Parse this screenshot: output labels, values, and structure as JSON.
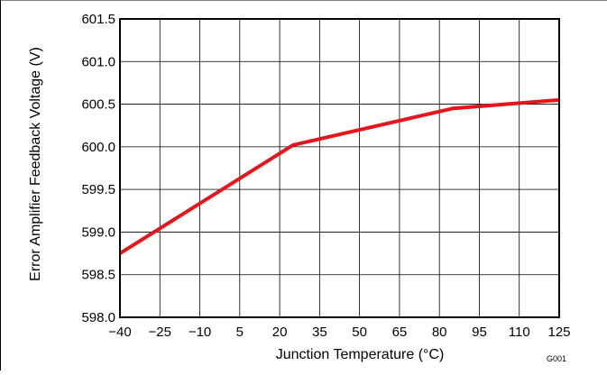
{
  "chart_data": {
    "type": "line",
    "title": "",
    "xlabel": "Junction Temperature (°C)",
    "ylabel": "Error Amplifier Feedback Voltage (V)",
    "xlim": [
      -40,
      125
    ],
    "ylim": [
      598.0,
      601.5
    ],
    "grid": true,
    "legend": "none",
    "x_ticks": [
      -40,
      -25,
      -10,
      5,
      20,
      35,
      50,
      65,
      80,
      95,
      110,
      125
    ],
    "x_tick_labels": [
      "−40",
      "−25",
      "−10",
      "5",
      "20",
      "35",
      "50",
      "65",
      "80",
      "95",
      "110",
      "125"
    ],
    "y_ticks": [
      598.0,
      598.5,
      599.0,
      599.5,
      600.0,
      600.5,
      601.0,
      601.5
    ],
    "y_tick_labels": [
      "598.0",
      "598.5",
      "599.0",
      "599.5",
      "600.0",
      "600.5",
      "601.0",
      "601.5"
    ],
    "series": [
      {
        "color": "#e8141b",
        "x": [
          -40,
          25,
          85,
          125
        ],
        "y": [
          598.75,
          600.02,
          600.45,
          600.55
        ]
      }
    ],
    "figure_id": "G001"
  },
  "colors": {
    "series": "#e8141b",
    "grid": "#000000",
    "frame": "#000000"
  }
}
